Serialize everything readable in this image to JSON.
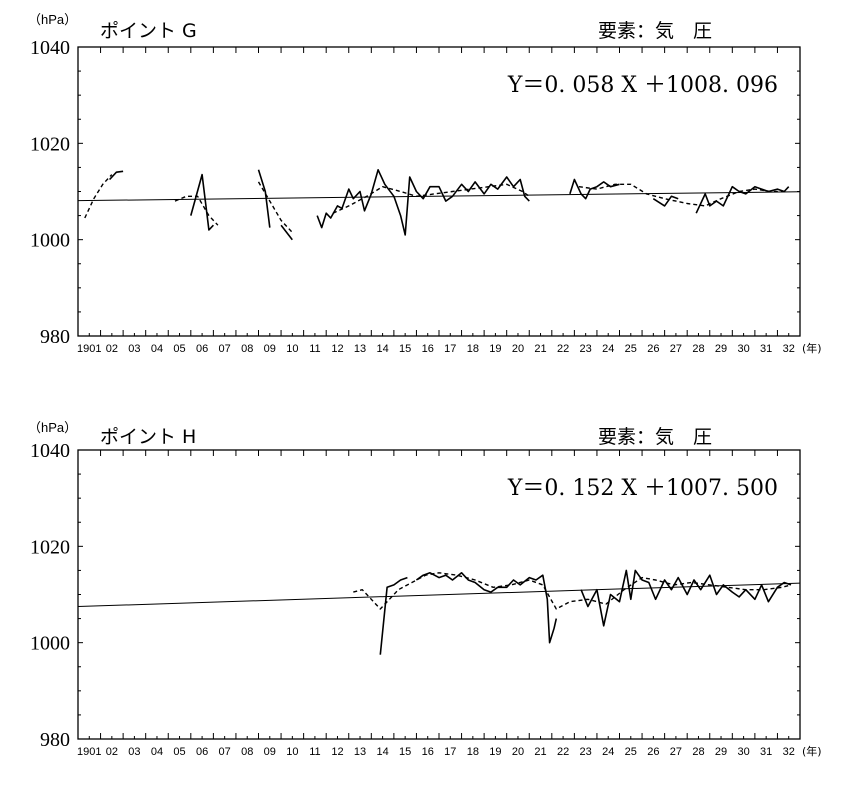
{
  "chart_data": [
    {
      "type": "line",
      "title": "ポイント G",
      "element_label": "要素：気　圧",
      "y_unit": "（hPa）",
      "equation": "Y＝0. 058 X ＋1008. 096",
      "ylim": [
        980,
        1040
      ],
      "yticks": [
        "1040",
        "1020",
        "1000",
        "980"
      ],
      "xlim": [
        1901,
        1933
      ],
      "xticks": [
        "1901",
        "02",
        "03",
        "04",
        "05",
        "06",
        "07",
        "08",
        "09",
        "10",
        "11",
        "12",
        "13",
        "14",
        "15",
        "16",
        "17",
        "18",
        "19",
        "20",
        "21",
        "22",
        "23",
        "24",
        "25",
        "26",
        "27",
        "28",
        "29",
        "30",
        "31",
        "32"
      ],
      "x_unit": "(年)",
      "trend": {
        "slope": 0.058,
        "intercept": 1008.096
      },
      "series": [
        {
          "style": "solid",
          "segments": [
            [
              [
                1902.4,
                1012.5
              ],
              [
                1902.7,
                1014.0
              ],
              [
                1903.0,
                1014.2
              ]
            ],
            [
              [
                1906.0,
                1005.0
              ],
              [
                1906.5,
                1013.5
              ],
              [
                1906.8,
                1002.0
              ],
              [
                1907.0,
                1003.0
              ]
            ],
            [
              [
                1909.0,
                1014.5
              ],
              [
                1909.3,
                1010.0
              ],
              [
                1909.5,
                1002.5
              ]
            ],
            [
              [
                1910.0,
                1003.0
              ],
              [
                1910.5,
                1000.0
              ]
            ],
            [
              [
                1911.6,
                1005.0
              ],
              [
                1911.8,
                1002.5
              ],
              [
                1912.0,
                1005.5
              ],
              [
                1912.2,
                1004.5
              ],
              [
                1912.5,
                1007.0
              ],
              [
                1912.7,
                1006.5
              ],
              [
                1913.0,
                1010.5
              ],
              [
                1913.2,
                1008.5
              ],
              [
                1913.5,
                1010.0
              ],
              [
                1913.7,
                1006.0
              ],
              [
                1914.0,
                1009.5
              ],
              [
                1914.3,
                1014.5
              ],
              [
                1914.6,
                1011.5
              ],
              [
                1915.0,
                1009.0
              ],
              [
                1915.3,
                1005.0
              ],
              [
                1915.5,
                1001.0
              ],
              [
                1915.7,
                1013.0
              ],
              [
                1916.0,
                1010.0
              ],
              [
                1916.3,
                1008.5
              ],
              [
                1916.6,
                1011.0
              ],
              [
                1917.0,
                1011.0
              ],
              [
                1917.3,
                1008.0
              ],
              [
                1917.6,
                1009.0
              ],
              [
                1918.0,
                1011.5
              ],
              [
                1918.3,
                1010.0
              ],
              [
                1918.6,
                1012.0
              ],
              [
                1919.0,
                1009.5
              ],
              [
                1919.3,
                1011.5
              ],
              [
                1919.6,
                1010.5
              ],
              [
                1920.0,
                1013.0
              ],
              [
                1920.3,
                1011.0
              ],
              [
                1920.6,
                1012.5
              ],
              [
                1920.8,
                1009.0
              ],
              [
                1921.0,
                1008.0
              ]
            ],
            [
              [
                1922.8,
                1009.5
              ],
              [
                1923.0,
                1012.5
              ],
              [
                1923.3,
                1009.5
              ],
              [
                1923.5,
                1008.5
              ],
              [
                1923.7,
                1010.5
              ],
              [
                1924.0,
                1011.0
              ],
              [
                1924.3,
                1012.0
              ],
              [
                1924.6,
                1011.0
              ],
              [
                1925.0,
                1011.5
              ]
            ],
            [
              [
                1926.5,
                1008.5
              ],
              [
                1927.0,
                1007.0
              ],
              [
                1927.3,
                1009.0
              ],
              [
                1927.6,
                1008.5
              ]
            ],
            [
              [
                1928.4,
                1005.5
              ],
              [
                1928.8,
                1009.5
              ],
              [
                1929.0,
                1007.0
              ],
              [
                1929.3,
                1008.0
              ],
              [
                1929.6,
                1007.0
              ],
              [
                1930.0,
                1011.0
              ],
              [
                1930.3,
                1010.0
              ],
              [
                1930.6,
                1009.5
              ],
              [
                1931.0,
                1011.0
              ],
              [
                1931.3,
                1010.5
              ],
              [
                1931.6,
                1010.0
              ],
              [
                1932.0,
                1010.5
              ],
              [
                1932.3,
                1010.0
              ],
              [
                1932.5,
                1011.0
              ]
            ]
          ]
        },
        {
          "style": "dashed",
          "segments": [
            [
              [
                1901.3,
                1004.5
              ],
              [
                1901.7,
                1008.5
              ],
              [
                1902.1,
                1011.5
              ],
              [
                1902.5,
                1013.5
              ]
            ],
            [
              [
                1905.3,
                1008.0
              ],
              [
                1905.8,
                1009.0
              ],
              [
                1906.3,
                1009.0
              ],
              [
                1906.8,
                1005.0
              ],
              [
                1907.2,
                1003.0
              ]
            ],
            [
              [
                1909.0,
                1012.0
              ],
              [
                1909.5,
                1008.0
              ],
              [
                1910.0,
                1004.0
              ],
              [
                1910.5,
                1001.5
              ]
            ],
            [
              [
                1912.3,
                1005.5
              ],
              [
                1913.0,
                1007.0
              ],
              [
                1913.8,
                1009.0
              ],
              [
                1914.5,
                1011.0
              ],
              [
                1915.3,
                1010.0
              ],
              [
                1916.0,
                1009.0
              ],
              [
                1916.8,
                1009.5
              ],
              [
                1917.6,
                1010.0
              ],
              [
                1918.4,
                1010.5
              ],
              [
                1919.2,
                1011.0
              ],
              [
                1920.0,
                1011.5
              ],
              [
                1920.7,
                1010.0
              ],
              [
                1921.0,
                1009.0
              ]
            ],
            [
              [
                1923.2,
                1011.0
              ],
              [
                1924.0,
                1010.5
              ],
              [
                1924.8,
                1011.5
              ],
              [
                1925.5,
                1011.5
              ],
              [
                1926.2,
                1009.5
              ],
              [
                1927.0,
                1008.5
              ],
              [
                1928.0,
                1007.5
              ],
              [
                1928.8,
                1007.0
              ],
              [
                1929.5,
                1008.5
              ],
              [
                1930.3,
                1010.0
              ],
              [
                1931.0,
                1010.5
              ],
              [
                1931.7,
                1010.0
              ],
              [
                1932.4,
                1010.0
              ]
            ]
          ]
        }
      ]
    },
    {
      "type": "line",
      "title": "ポイント H",
      "element_label": "要素：気　圧",
      "y_unit": "（hPa）",
      "equation": "Y＝0. 152 X ＋1007. 500",
      "ylim": [
        980,
        1040
      ],
      "yticks": [
        "1040",
        "1020",
        "1000",
        "980"
      ],
      "xlim": [
        1901,
        1933
      ],
      "xticks": [
        "1901",
        "02",
        "03",
        "04",
        "05",
        "06",
        "07",
        "08",
        "09",
        "10",
        "11",
        "12",
        "13",
        "14",
        "15",
        "16",
        "17",
        "18",
        "19",
        "20",
        "21",
        "22",
        "23",
        "24",
        "25",
        "26",
        "27",
        "28",
        "29",
        "30",
        "31",
        "32"
      ],
      "x_unit": "(年)",
      "trend": {
        "slope": 0.152,
        "intercept": 1007.5
      },
      "series": [
        {
          "style": "solid",
          "segments": [
            [
              [
                1914.4,
                997.5
              ],
              [
                1914.7,
                1011.5
              ],
              [
                1915.0,
                1012.0
              ],
              [
                1915.3,
                1013.0
              ],
              [
                1915.6,
                1013.5
              ]
            ],
            [
              [
                1916.0,
                1013.0
              ],
              [
                1916.3,
                1014.0
              ],
              [
                1916.6,
                1014.5
              ],
              [
                1917.0,
                1013.5
              ],
              [
                1917.3,
                1014.0
              ],
              [
                1917.6,
                1013.0
              ],
              [
                1918.0,
                1014.5
              ],
              [
                1918.3,
                1013.0
              ],
              [
                1918.6,
                1012.5
              ],
              [
                1919.0,
                1011.0
              ],
              [
                1919.3,
                1010.5
              ],
              [
                1919.6,
                1011.5
              ],
              [
                1920.0,
                1011.5
              ],
              [
                1920.3,
                1013.0
              ],
              [
                1920.6,
                1012.0
              ],
              [
                1921.0,
                1013.5
              ],
              [
                1921.3,
                1013.0
              ],
              [
                1921.6,
                1014.0
              ],
              [
                1921.8,
                1009.0
              ],
              [
                1921.9,
                1000.0
              ],
              [
                1922.1,
                1003.0
              ],
              [
                1922.2,
                1005.0
              ]
            ],
            [
              [
                1923.3,
                1011.0
              ],
              [
                1923.6,
                1007.5
              ],
              [
                1924.0,
                1011.0
              ],
              [
                1924.3,
                1003.5
              ],
              [
                1924.6,
                1010.0
              ],
              [
                1925.0,
                1008.5
              ],
              [
                1925.3,
                1015.0
              ],
              [
                1925.5,
                1009.0
              ],
              [
                1925.7,
                1015.0
              ],
              [
                1926.0,
                1013.0
              ],
              [
                1926.3,
                1012.5
              ],
              [
                1926.6,
                1009.0
              ],
              [
                1927.0,
                1013.0
              ],
              [
                1927.3,
                1011.0
              ],
              [
                1927.6,
                1013.5
              ],
              [
                1928.0,
                1010.0
              ],
              [
                1928.3,
                1013.0
              ],
              [
                1928.6,
                1011.0
              ],
              [
                1929.0,
                1014.0
              ],
              [
                1929.3,
                1010.0
              ],
              [
                1929.6,
                1012.0
              ],
              [
                1930.0,
                1010.5
              ],
              [
                1930.3,
                1009.5
              ],
              [
                1930.6,
                1011.0
              ],
              [
                1931.0,
                1009.0
              ],
              [
                1931.3,
                1012.0
              ],
              [
                1931.6,
                1008.5
              ],
              [
                1932.0,
                1011.5
              ],
              [
                1932.3,
                1012.5
              ],
              [
                1932.6,
                1012.0
              ]
            ]
          ]
        },
        {
          "style": "dashed",
          "segments": [
            [
              [
                1913.2,
                1010.5
              ],
              [
                1913.6,
                1011.0
              ],
              [
                1914.0,
                1009.0
              ],
              [
                1914.4,
                1007.0
              ],
              [
                1914.8,
                1009.0
              ],
              [
                1915.2,
                1011.0
              ],
              [
                1915.8,
                1012.5
              ],
              [
                1916.4,
                1014.0
              ],
              [
                1917.0,
                1014.5
              ],
              [
                1917.8,
                1014.0
              ],
              [
                1918.6,
                1013.0
              ],
              [
                1919.4,
                1011.5
              ],
              [
                1920.2,
                1012.0
              ],
              [
                1921.0,
                1013.0
              ],
              [
                1921.6,
                1012.0
              ],
              [
                1922.2,
                1007.0
              ],
              [
                1922.8,
                1008.5
              ],
              [
                1923.6,
                1009.0
              ],
              [
                1924.4,
                1008.0
              ],
              [
                1925.2,
                1011.0
              ],
              [
                1926.0,
                1013.5
              ],
              [
                1926.6,
                1013.0
              ],
              [
                1927.4,
                1012.0
              ],
              [
                1928.2,
                1012.5
              ],
              [
                1929.0,
                1012.0
              ],
              [
                1929.8,
                1011.5
              ],
              [
                1930.6,
                1011.0
              ],
              [
                1931.4,
                1011.0
              ],
              [
                1932.2,
                1011.5
              ],
              [
                1932.6,
                1012.0
              ]
            ]
          ]
        }
      ]
    }
  ]
}
